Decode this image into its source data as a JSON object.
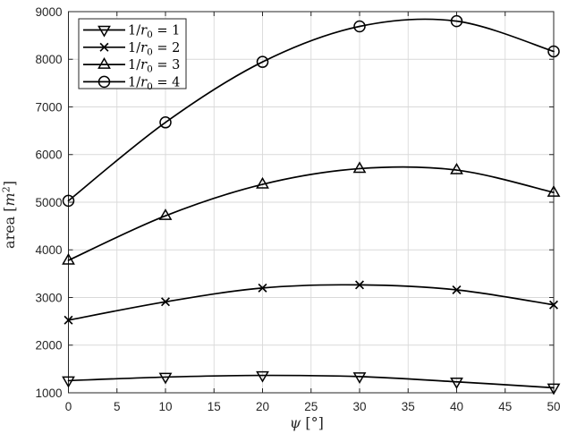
{
  "figure": {
    "background": "#ffffff"
  },
  "chart_data": {
    "type": "line",
    "title": "",
    "x": [
      0,
      10,
      20,
      30,
      40,
      50
    ],
    "series": [
      {
        "name": "1/r0 = 1",
        "marker": "triangle-down",
        "values": [
          1255,
          1330,
          1365,
          1340,
          1230,
          1105
        ],
        "label_runs": [
          {
            "t": "1/"
          },
          {
            "t": "r",
            "i": true
          },
          {
            "t": "0",
            "shift": "sub"
          },
          {
            "t": " = 1"
          }
        ]
      },
      {
        "name": "1/r0 = 2",
        "marker": "x",
        "values": [
          2525,
          2910,
          3200,
          3265,
          3160,
          2845
        ],
        "label_runs": [
          {
            "t": "1/"
          },
          {
            "t": "r",
            "i": true
          },
          {
            "t": "0",
            "shift": "sub"
          },
          {
            "t": " = 2"
          }
        ]
      },
      {
        "name": "1/r0 = 3",
        "marker": "triangle-up",
        "values": [
          3780,
          4715,
          5375,
          5705,
          5675,
          5205
        ],
        "label_runs": [
          {
            "t": "1/"
          },
          {
            "t": "r",
            "i": true
          },
          {
            "t": "0",
            "shift": "sub"
          },
          {
            "t": " = 3"
          }
        ]
      },
      {
        "name": "1/r0 = 4",
        "marker": "circle",
        "values": [
          5030,
          6675,
          7945,
          8690,
          8800,
          8165
        ],
        "label_runs": [
          {
            "t": "1/"
          },
          {
            "t": "r",
            "i": true
          },
          {
            "t": "0",
            "shift": "sub"
          },
          {
            "t": " = 4"
          }
        ]
      }
    ],
    "xlabel": "ψ [°]",
    "xlabel_runs": [
      {
        "t": "ψ",
        "i": true
      },
      {
        "t": " [°]"
      }
    ],
    "ylabel": "area [m²]",
    "ylabel_runs": [
      {
        "t": "area ["
      },
      {
        "t": "m",
        "i": true
      },
      {
        "t": "2",
        "shift": "sup"
      },
      {
        "t": "]"
      }
    ],
    "xlim": [
      0,
      50
    ],
    "ylim": [
      1000,
      9000
    ],
    "xticks": [
      0,
      5,
      10,
      15,
      20,
      25,
      30,
      35,
      40,
      45,
      50
    ],
    "yticks": [
      1000,
      2000,
      3000,
      4000,
      5000,
      6000,
      7000,
      8000,
      9000
    ],
    "grid": true,
    "legend_position": "top-left",
    "colors": {
      "line": "#000000",
      "grid": "#d9d9d9",
      "axis": "#262626",
      "text": "#262626",
      "background": "#ffffff"
    },
    "line_width": 1.7
  }
}
